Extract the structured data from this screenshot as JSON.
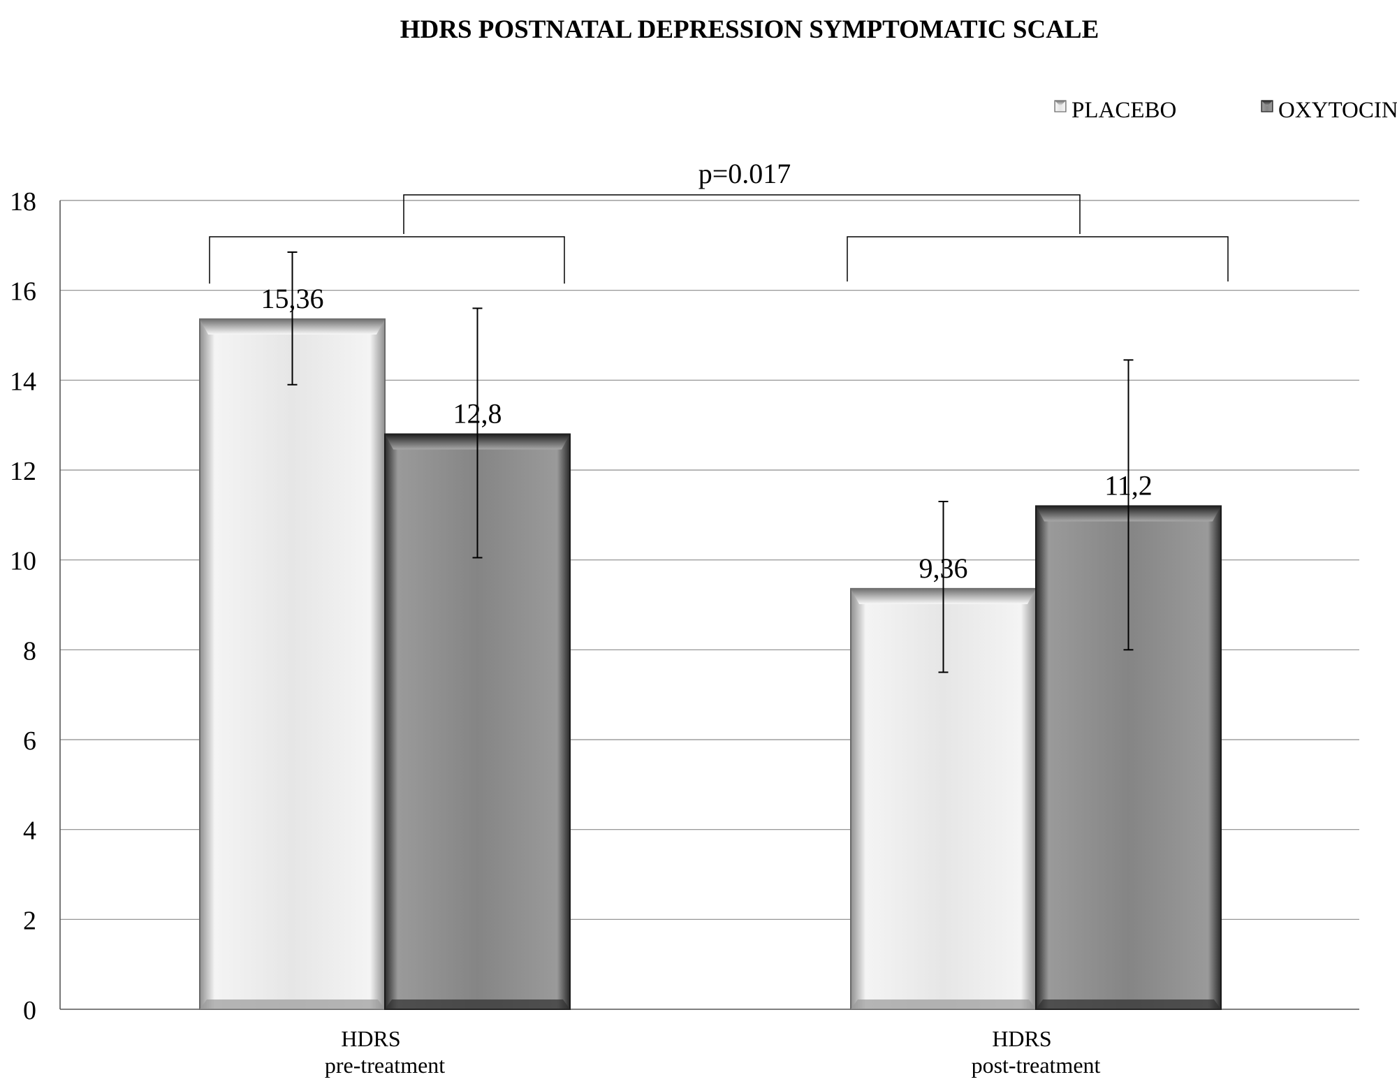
{
  "chart_data": {
    "type": "bar",
    "title": "HDRS POSTNATAL DEPRESSION SYMPTOMATIC SCALE",
    "xlabel": "",
    "ylabel": "",
    "ylim": [
      0,
      18
    ],
    "y_ticks": [
      0,
      2,
      4,
      6,
      8,
      10,
      12,
      14,
      16,
      18
    ],
    "grid": true,
    "legend_position": "top-right",
    "categories": [
      [
        "HDRS",
        "pre-treatment"
      ],
      [
        "HDRS",
        "post-treatment"
      ]
    ],
    "series": [
      {
        "name": "PLACEBO",
        "color": "#e6e6e6",
        "values": [
          15.36,
          9.36
        ],
        "value_labels": [
          "15,36",
          "9,36"
        ],
        "error_low": [
          13.9,
          7.5
        ],
        "error_high": [
          16.85,
          11.3
        ]
      },
      {
        "name": "OXYTOCIN",
        "color": "#858585",
        "values": [
          12.8,
          11.2
        ],
        "value_labels": [
          "12,8",
          "11,2"
        ],
        "error_low": [
          10.05,
          8.0
        ],
        "error_high": [
          15.6,
          14.45
        ]
      }
    ],
    "annotations": [
      {
        "text": "p=0.017"
      }
    ]
  }
}
